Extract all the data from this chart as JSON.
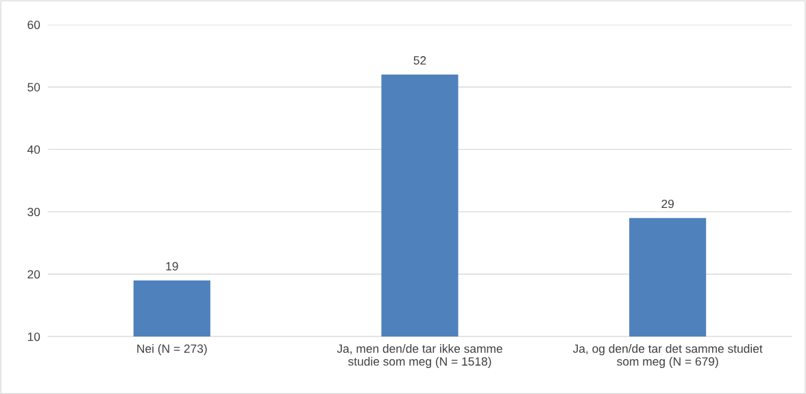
{
  "chart_data": {
    "type": "bar",
    "categories": [
      "Nei (N = 273)",
      "Ja, men den/de tar ikke samme\nstudie som meg (N = 1518)",
      "Ja, og den/de tar det samme studiet\nsom meg (N = 679)"
    ],
    "values": [
      19,
      52,
      29
    ],
    "color": "#4f81bd",
    "ylim": [
      10,
      60
    ],
    "yticks": [
      10,
      20,
      30,
      40,
      50,
      60
    ],
    "grid": "y",
    "data_labels": true
  }
}
